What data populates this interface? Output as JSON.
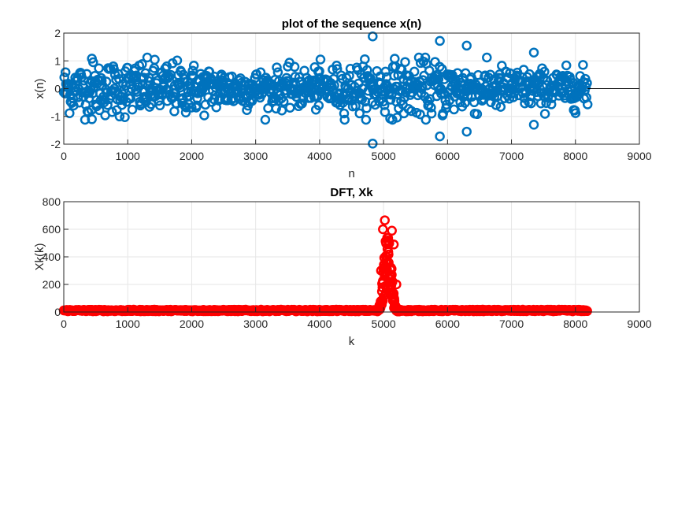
{
  "chart_data": [
    {
      "type": "scatter",
      "title": "plot of the sequence x(n)",
      "xlabel": "n",
      "ylabel": "x(n)",
      "xlim": [
        0,
        9000
      ],
      "ylim": [
        -2,
        2
      ],
      "xticks": [
        0,
        1000,
        2000,
        3000,
        4000,
        5000,
        6000,
        7000,
        8000,
        9000
      ],
      "yticks": [
        -2,
        -1,
        0,
        1,
        2
      ],
      "grid": true,
      "marker": "circle",
      "color": "#0072BD",
      "series": [
        {
          "n_range": [
            0,
            8191
          ],
          "envelope_description": "dense noise-like sequence, mostly within about -1 to 1",
          "notable_points": [
            {
              "x": 4830,
              "y": 1.88
            },
            {
              "x": 4830,
              "y": -1.98
            },
            {
              "x": 5880,
              "y": 1.72
            },
            {
              "x": 5880,
              "y": -1.72
            },
            {
              "x": 6300,
              "y": 1.55
            },
            {
              "x": 6300,
              "y": -1.55
            },
            {
              "x": 440,
              "y": 1.08
            },
            {
              "x": 440,
              "y": -1.1
            },
            {
              "x": 7350,
              "y": 1.3
            },
            {
              "x": 7350,
              "y": -1.3
            }
          ]
        }
      ]
    },
    {
      "type": "scatter",
      "title": "DFT, Xk",
      "xlabel": "k",
      "ylabel": "Xk(k)",
      "xlim": [
        0,
        9000
      ],
      "ylim": [
        0,
        800
      ],
      "xticks": [
        0,
        1000,
        2000,
        3000,
        4000,
        5000,
        6000,
        7000,
        8000,
        9000
      ],
      "yticks": [
        0,
        200,
        400,
        600,
        800
      ],
      "grid": true,
      "marker": "circle",
      "color": "#FF0000",
      "series": [
        {
          "k_range": [
            0,
            8191
          ],
          "baseline_level": 5,
          "peak_region": [
            4900,
            5250
          ],
          "notable_points": [
            {
              "x": 5020,
              "y": 665
            },
            {
              "x": 4990,
              "y": 600
            },
            {
              "x": 5130,
              "y": 590
            },
            {
              "x": 5160,
              "y": 490
            },
            {
              "x": 5050,
              "y": 400
            },
            {
              "x": 4960,
              "y": 300
            },
            {
              "x": 5200,
              "y": 200
            }
          ]
        }
      ]
    }
  ]
}
